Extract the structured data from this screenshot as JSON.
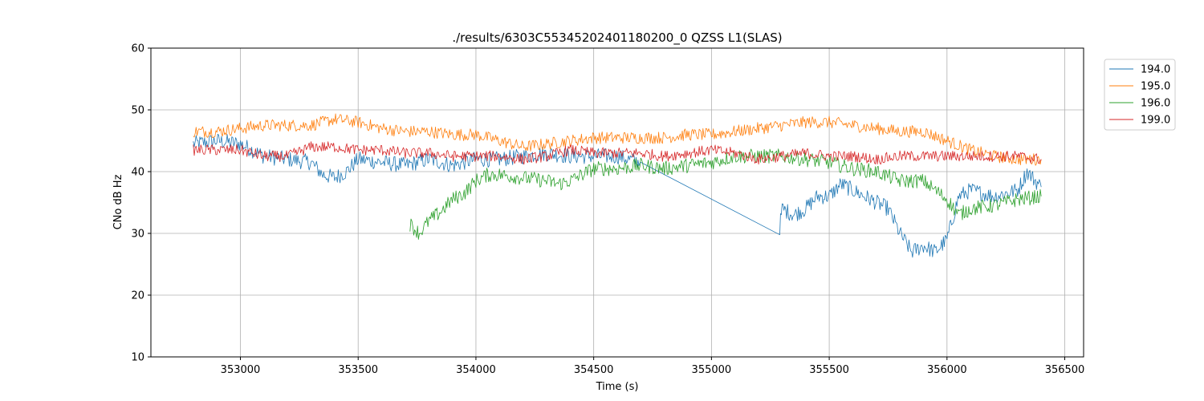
{
  "chart_data": {
    "type": "line",
    "title": "./results/6303C55345202401180200_0 QZSS L1(SLAS)",
    "xlabel": "Time (s)",
    "ylabel": "CNo dB Hz",
    "xlim": [
      352620,
      356580
    ],
    "ylim": [
      10,
      60
    ],
    "xticks": [
      353000,
      353500,
      354000,
      354500,
      355000,
      355500,
      356000,
      356500
    ],
    "yticks": [
      10,
      20,
      30,
      40,
      50,
      60
    ],
    "grid": true,
    "legend_position": "outside-top-right",
    "series": [
      {
        "name": "194.0",
        "color": "#1f77b4",
        "points": [
          [
            352800,
            44.5
          ],
          [
            352900,
            45.0
          ],
          [
            353000,
            44.5
          ],
          [
            353100,
            42.5
          ],
          [
            353200,
            42.0
          ],
          [
            353300,
            41.5
          ],
          [
            353350,
            39.5
          ],
          [
            353400,
            39.0
          ],
          [
            353450,
            40.0
          ],
          [
            353500,
            42.0
          ],
          [
            353600,
            41.5
          ],
          [
            353700,
            41.0
          ],
          [
            353800,
            42.0
          ],
          [
            353900,
            41.0
          ],
          [
            354000,
            42.0
          ],
          [
            354100,
            42.0
          ],
          [
            354200,
            42.5
          ],
          [
            354300,
            43.0
          ],
          [
            354400,
            42.5
          ],
          [
            354500,
            42.5
          ],
          [
            354600,
            42.5
          ],
          [
            354700,
            41.5
          ],
          [
            355290,
            31.0
          ],
          [
            355300,
            34.0
          ],
          [
            355350,
            33.0
          ],
          [
            355400,
            34.0
          ],
          [
            355450,
            36.0
          ],
          [
            355500,
            36.0
          ],
          [
            355550,
            38.0
          ],
          [
            355600,
            37.0
          ],
          [
            355650,
            36.0
          ],
          [
            355700,
            35.0
          ],
          [
            355750,
            34.0
          ],
          [
            355800,
            30.0
          ],
          [
            355850,
            27.0
          ],
          [
            355900,
            28.0
          ],
          [
            355950,
            27.0
          ],
          [
            356000,
            29.0
          ],
          [
            356050,
            36.0
          ],
          [
            356100,
            37.0
          ],
          [
            356200,
            36.0
          ],
          [
            356300,
            37.0
          ],
          [
            356340,
            40.0
          ],
          [
            356400,
            37.5
          ]
        ]
      },
      {
        "name": "195.0",
        "color": "#ff7f0e",
        "points": [
          [
            352800,
            46.5
          ],
          [
            352900,
            46.5
          ],
          [
            353000,
            47.0
          ],
          [
            353100,
            47.5
          ],
          [
            353200,
            47.5
          ],
          [
            353300,
            47.5
          ],
          [
            353400,
            48.5
          ],
          [
            353500,
            48.0
          ],
          [
            353600,
            47.0
          ],
          [
            353700,
            46.5
          ],
          [
            353800,
            46.5
          ],
          [
            353900,
            46.0
          ],
          [
            354000,
            46.0
          ],
          [
            354100,
            45.0
          ],
          [
            354200,
            44.0
          ],
          [
            354300,
            44.5
          ],
          [
            354400,
            45.0
          ],
          [
            354500,
            45.5
          ],
          [
            354600,
            45.5
          ],
          [
            354700,
            45.5
          ],
          [
            354800,
            45.5
          ],
          [
            354900,
            46.0
          ],
          [
            355000,
            46.0
          ],
          [
            355100,
            46.5
          ],
          [
            355200,
            47.0
          ],
          [
            355300,
            47.5
          ],
          [
            355400,
            48.0
          ],
          [
            355500,
            48.0
          ],
          [
            355600,
            47.5
          ],
          [
            355700,
            47.0
          ],
          [
            355800,
            46.5
          ],
          [
            355900,
            46.5
          ],
          [
            356000,
            45.0
          ],
          [
            356100,
            43.5
          ],
          [
            356200,
            42.5
          ],
          [
            356300,
            42.0
          ],
          [
            356400,
            42.0
          ]
        ]
      },
      {
        "name": "196.0",
        "color": "#2ca02c",
        "points": [
          [
            353720,
            31.5
          ],
          [
            353760,
            30.0
          ],
          [
            353800,
            32.0
          ],
          [
            353850,
            33.5
          ],
          [
            353900,
            35.5
          ],
          [
            353950,
            36.5
          ],
          [
            354000,
            38.5
          ],
          [
            354050,
            39.5
          ],
          [
            354100,
            39.5
          ],
          [
            354200,
            39.0
          ],
          [
            354300,
            38.5
          ],
          [
            354350,
            38.0
          ],
          [
            354400,
            38.5
          ],
          [
            354450,
            39.5
          ],
          [
            354500,
            40.5
          ],
          [
            354600,
            40.5
          ],
          [
            354700,
            41.0
          ],
          [
            354800,
            40.5
          ],
          [
            354900,
            41.0
          ],
          [
            355000,
            41.5
          ],
          [
            355100,
            42.5
          ],
          [
            355200,
            42.5
          ],
          [
            355300,
            42.5
          ],
          [
            355400,
            42.0
          ],
          [
            355500,
            41.5
          ],
          [
            355600,
            40.5
          ],
          [
            355700,
            40.0
          ],
          [
            355800,
            38.5
          ],
          [
            355900,
            38.5
          ],
          [
            356000,
            35.5
          ],
          [
            356050,
            33.0
          ],
          [
            356100,
            34.0
          ],
          [
            356200,
            34.5
          ],
          [
            356300,
            35.5
          ],
          [
            356400,
            36.0
          ]
        ]
      },
      {
        "name": "199.0",
        "color": "#d62728",
        "points": [
          [
            352800,
            43.5
          ],
          [
            352900,
            43.5
          ],
          [
            353000,
            43.5
          ],
          [
            353100,
            42.5
          ],
          [
            353200,
            42.5
          ],
          [
            353300,
            44.0
          ],
          [
            353400,
            44.0
          ],
          [
            353500,
            43.5
          ],
          [
            353600,
            43.5
          ],
          [
            353700,
            43.0
          ],
          [
            353800,
            43.0
          ],
          [
            353900,
            42.5
          ],
          [
            354000,
            42.5
          ],
          [
            354100,
            42.5
          ],
          [
            354200,
            42.0
          ],
          [
            354300,
            42.5
          ],
          [
            354400,
            43.5
          ],
          [
            354500,
            43.0
          ],
          [
            354600,
            43.0
          ],
          [
            354700,
            43.0
          ],
          [
            354800,
            42.5
          ],
          [
            354900,
            43.0
          ],
          [
            355000,
            43.5
          ],
          [
            355100,
            43.0
          ],
          [
            355200,
            42.0
          ],
          [
            355300,
            42.5
          ],
          [
            355400,
            43.0
          ],
          [
            355500,
            42.5
          ],
          [
            355600,
            42.5
          ],
          [
            355700,
            42.0
          ],
          [
            355800,
            42.5
          ],
          [
            355900,
            42.5
          ],
          [
            356000,
            42.5
          ],
          [
            356100,
            42.5
          ],
          [
            356200,
            42.5
          ],
          [
            356300,
            42.5
          ],
          [
            356400,
            42.0
          ]
        ]
      }
    ]
  }
}
